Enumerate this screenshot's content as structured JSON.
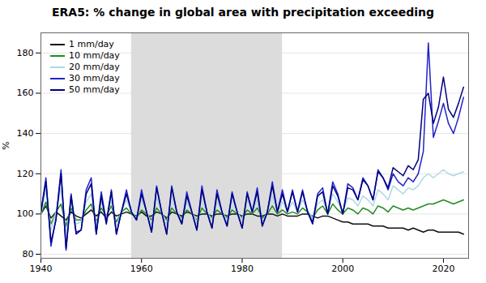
{
  "chart_data": {
    "type": "line",
    "title": "ERA5: % change in global area with precipitation exceeding",
    "ylabel": "%",
    "x": [
      1940,
      1941,
      1942,
      1943,
      1944,
      1945,
      1946,
      1947,
      1948,
      1949,
      1950,
      1951,
      1952,
      1953,
      1954,
      1955,
      1956,
      1957,
      1958,
      1959,
      1960,
      1961,
      1962,
      1963,
      1964,
      1965,
      1966,
      1967,
      1968,
      1969,
      1970,
      1971,
      1972,
      1973,
      1974,
      1975,
      1976,
      1977,
      1978,
      1979,
      1980,
      1981,
      1982,
      1983,
      1984,
      1985,
      1986,
      1987,
      1988,
      1989,
      1990,
      1991,
      1992,
      1993,
      1994,
      1995,
      1996,
      1997,
      1998,
      1999,
      2000,
      2001,
      2002,
      2003,
      2004,
      2005,
      2006,
      2007,
      2008,
      2009,
      2010,
      2011,
      2012,
      2013,
      2014,
      2015,
      2016,
      2017,
      2018,
      2019,
      2020,
      2021,
      2022,
      2023,
      2024
    ],
    "series": [
      {
        "name": "1 mm/day",
        "color": "#111111",
        "values": [
          100,
          104,
          98,
          101,
          99,
          97,
          101,
          99,
          98,
          100,
          102,
          99,
          101,
          98,
          101,
          99,
          100,
          101,
          100,
          99,
          101,
          99,
          99,
          101,
          100,
          98,
          101,
          100,
          99,
          101,
          100,
          99,
          100,
          100,
          99,
          100,
          100,
          99,
          100,
          100,
          99,
          100,
          100,
          99,
          99,
          100,
          100,
          99,
          100,
          99,
          99,
          99,
          100,
          100,
          99,
          98,
          99,
          99,
          98,
          97,
          96,
          96,
          95,
          95,
          95,
          95,
          94,
          94,
          94,
          93,
          93,
          93,
          93,
          92,
          93,
          92,
          91,
          92,
          92,
          91,
          91,
          91,
          91,
          91,
          90
        ]
      },
      {
        "name": "10 mm/day",
        "color": "#228B22",
        "values": [
          100,
          106,
          95,
          101,
          105,
          94,
          103,
          97,
          97,
          102,
          105,
          96,
          103,
          99,
          104,
          96,
          101,
          103,
          100,
          98,
          102,
          100,
          97,
          103,
          100,
          97,
          103,
          100,
          98,
          102,
          100,
          97,
          103,
          100,
          98,
          102,
          100,
          98,
          102,
          100,
          98,
          102,
          100,
          103,
          98,
          100,
          104,
          100,
          102,
          100,
          101,
          100,
          103,
          101,
          98,
          102,
          104,
          100,
          105,
          102,
          100,
          103,
          102,
          100,
          103,
          102,
          100,
          104,
          103,
          101,
          104,
          103,
          102,
          103,
          102,
          103,
          104,
          105,
          105,
          106,
          107,
          106,
          105,
          106,
          107
        ]
      },
      {
        "name": "20 mm/day",
        "color": "#ADD8E6",
        "values": [
          100,
          112,
          92,
          101,
          113,
          90,
          106,
          95,
          96,
          106,
          110,
          94,
          106,
          98,
          107,
          94,
          101,
          107,
          101,
          98,
          107,
          101,
          95,
          108,
          101,
          95,
          108,
          101,
          97,
          106,
          101,
          96,
          107,
          101,
          97,
          106,
          101,
          97,
          107,
          101,
          97,
          107,
          101,
          107,
          96,
          101,
          109,
          101,
          106,
          101,
          106,
          101,
          107,
          102,
          98,
          105,
          107,
          101,
          110,
          106,
          101,
          108,
          107,
          104,
          109,
          107,
          104,
          112,
          110,
          107,
          114,
          112,
          110,
          113,
          112,
          114,
          118,
          120,
          118,
          120,
          122,
          120,
          119,
          120,
          121
        ]
      },
      {
        "name": "30 mm/day",
        "color": "#2222CC",
        "values": [
          101,
          118,
          84,
          98,
          122,
          82,
          110,
          91,
          92,
          112,
          118,
          90,
          111,
          96,
          112,
          90,
          101,
          112,
          101,
          97,
          112,
          101,
          91,
          114,
          101,
          90,
          114,
          101,
          95,
          111,
          101,
          92,
          114,
          101,
          93,
          112,
          101,
          94,
          111,
          101,
          93,
          111,
          101,
          113,
          94,
          101,
          116,
          101,
          112,
          101,
          112,
          101,
          112,
          101,
          96,
          110,
          113,
          100,
          116,
          110,
          100,
          115,
          113,
          107,
          118,
          114,
          107,
          122,
          118,
          112,
          120,
          116,
          114,
          118,
          116,
          120,
          131,
          185,
          138,
          146,
          155,
          145,
          140,
          148,
          158
        ]
      },
      {
        "name": "50 mm/day",
        "color": "#000080",
        "values": [
          101,
          116,
          86,
          97,
          120,
          83,
          109,
          90,
          92,
          110,
          115,
          90,
          109,
          95,
          111,
          90,
          101,
          110,
          101,
          97,
          110,
          101,
          91,
          113,
          101,
          90,
          113,
          101,
          95,
          109,
          101,
          92,
          112,
          101,
          93,
          110,
          101,
          94,
          110,
          101,
          93,
          110,
          101,
          111,
          94,
          101,
          114,
          101,
          110,
          101,
          111,
          101,
          111,
          101,
          95,
          109,
          111,
          100,
          114,
          109,
          100,
          113,
          112,
          107,
          117,
          114,
          107,
          121,
          118,
          113,
          123,
          121,
          119,
          124,
          122,
          127,
          157,
          160,
          145,
          153,
          168,
          152,
          148,
          155,
          163
        ]
      }
    ],
    "xlim": [
      1940,
      2025
    ],
    "xticks": [
      1940,
      1960,
      1980,
      2000,
      2020
    ],
    "ylim": [
      78,
      190
    ],
    "yticks": [
      80,
      100,
      120,
      140,
      160,
      180
    ],
    "grid": true,
    "legend": "upper left",
    "shade": {
      "x": [
        1958,
        1988
      ],
      "color": "#dcdcdc"
    }
  }
}
